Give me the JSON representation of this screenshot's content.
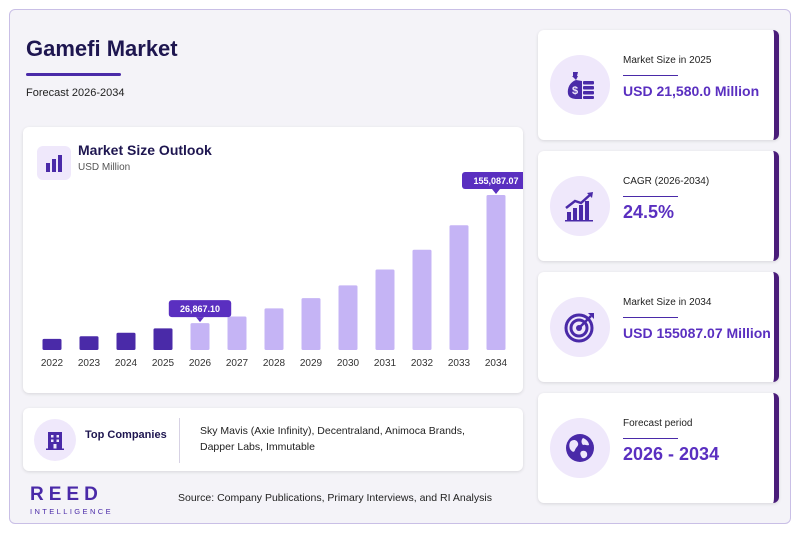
{
  "header": {
    "title": "Gamefi Market",
    "subtitle": "Forecast 2026-2034"
  },
  "chart_card": {
    "title": "Market Size Outlook",
    "unit": "USD Million"
  },
  "chart_data": {
    "type": "bar",
    "title": "Market Size Outlook",
    "ylabel": "USD Million",
    "categories": [
      "2022",
      "2023",
      "2024",
      "2025",
      "2026",
      "2027",
      "2028",
      "2029",
      "2030",
      "2031",
      "2032",
      "2033",
      "2034"
    ],
    "values": [
      11100,
      13800,
      17300,
      21580,
      26867.1,
      33500,
      41700,
      51900,
      64600,
      80500,
      100300,
      124800,
      155087.07
    ],
    "historical_color": "#4a2aa8",
    "forecast_color": "#c5b4f5",
    "callouts": [
      {
        "category": "2026",
        "label": "26,867.10"
      },
      {
        "category": "2034",
        "label": "155,087.07"
      }
    ],
    "grid": false,
    "ylim": [
      0,
      155087.07
    ]
  },
  "companies": {
    "label": "Top Companies",
    "text": "Sky Mavis (Axie Infinity), Decentraland, Animoca Brands, Dapper Labs, Immutable"
  },
  "logo": {
    "main": "REED",
    "sub": "INTELLIGENCE"
  },
  "source": "Source: Company Publications, Primary Interviews, and RI Analysis",
  "stats": [
    {
      "label": "Market Size in 2025",
      "value": "USD 21,580.0 Million",
      "icon": "money-bag-icon"
    },
    {
      "label": "CAGR (2026-2034)",
      "value": "24.5%",
      "icon": "growth-chart-icon"
    },
    {
      "label": "Market Size in 2034",
      "value": "USD 155087.07 Million",
      "icon": "target-icon"
    },
    {
      "label": "Forecast period",
      "value": "2026 - 2034",
      "icon": "globe-icon"
    }
  ],
  "colors": {
    "accent": "#4a2aa8",
    "accent_light": "#c5b4f5",
    "title": "#1e1650",
    "stat_value": "#5a2fc0"
  }
}
